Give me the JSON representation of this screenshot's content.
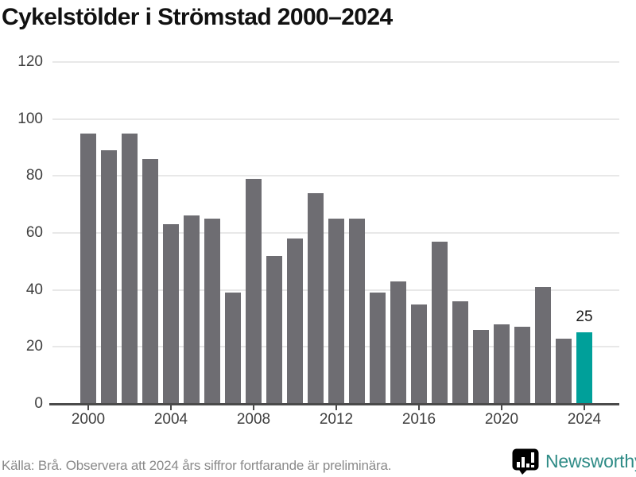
{
  "chart_data": {
    "type": "bar",
    "title": "Cykelstölder i Strömstad 2000–2024",
    "x": [
      2000,
      2001,
      2002,
      2003,
      2004,
      2005,
      2006,
      2007,
      2008,
      2009,
      2010,
      2011,
      2012,
      2013,
      2014,
      2015,
      2016,
      2017,
      2018,
      2019,
      2020,
      2021,
      2022,
      2023,
      2024
    ],
    "values": [
      95,
      89,
      95,
      86,
      63,
      66,
      65,
      39,
      79,
      52,
      58,
      74,
      65,
      65,
      39,
      43,
      35,
      57,
      36,
      26,
      28,
      27,
      41,
      23,
      25
    ],
    "xticks": [
      2000,
      2004,
      2008,
      2012,
      2016,
      2020,
      2024
    ],
    "yticks": [
      0,
      20,
      40,
      60,
      80,
      100,
      120
    ],
    "ylim": [
      0,
      120
    ],
    "grid": "horizontal",
    "legend": "none",
    "bar_color": "#6e6d72",
    "highlight_color": "#00a09a",
    "highlight_x": 2024,
    "highlight_label": "25"
  },
  "footer": {
    "source_note": "Källa: Brå. Observera att 2024 års siffror fortfarande är preliminära.",
    "brand_name": "Newsworthy"
  },
  "colors": {
    "title_text": "#111111",
    "tick_text": "#3f3f3f",
    "axis": "#4a4a4a",
    "grid": "#e8e8e8",
    "bar": "#6e6d72",
    "highlight": "#00a09a",
    "value_label": "#1a1a1a",
    "source_text": "#8a8a8a",
    "brand": "#2e8b86"
  }
}
